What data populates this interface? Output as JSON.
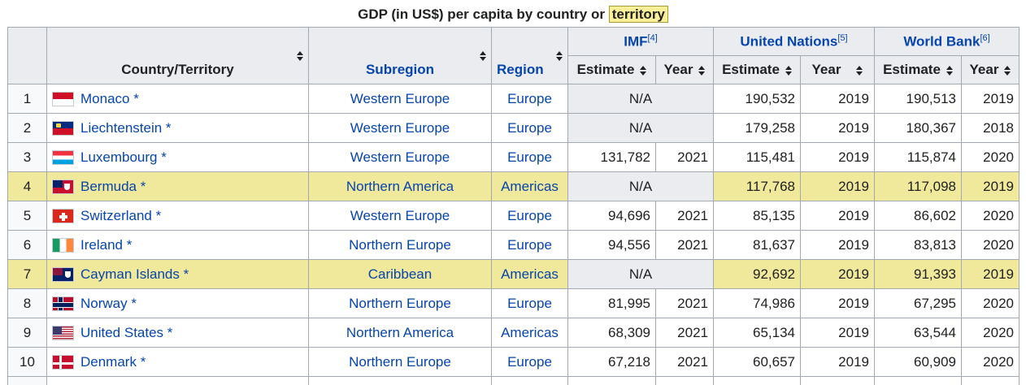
{
  "caption": {
    "text": "GDP (in US$) per capita by country or",
    "highlight": "territory"
  },
  "headers": {
    "country": "Country/Territory",
    "subregion": "Subregion",
    "region": "Region",
    "imf": "IMF",
    "imf_ref": "[4]",
    "un": "United Nations",
    "un_ref": "[5]",
    "wb": "World Bank",
    "wb_ref": "[6]",
    "estimate": "Estimate",
    "year": "Year"
  },
  "rows": [
    {
      "rank": "1",
      "country": "Monaco",
      "star": "*",
      "flag": "f-monaco",
      "subregion": "Western Europe",
      "region": "Europe",
      "imf_est": "N/A",
      "imf_year": "",
      "un_est": "190,532",
      "un_year": "2019",
      "wb_est": "190,513",
      "wb_year": "2019",
      "highlight": false
    },
    {
      "rank": "2",
      "country": "Liechtenstein",
      "star": "*",
      "flag": "f-liech",
      "subregion": "Western Europe",
      "region": "Europe",
      "imf_est": "N/A",
      "imf_year": "",
      "un_est": "179,258",
      "un_year": "2019",
      "wb_est": "180,367",
      "wb_year": "2018",
      "highlight": false
    },
    {
      "rank": "3",
      "country": "Luxembourg",
      "star": "*",
      "flag": "f-lux",
      "subregion": "Western Europe",
      "region": "Europe",
      "imf_est": "131,782",
      "imf_year": "2021",
      "un_est": "115,481",
      "un_year": "2019",
      "wb_est": "115,874",
      "wb_year": "2020",
      "highlight": false
    },
    {
      "rank": "4",
      "country": "Bermuda",
      "star": "*",
      "flag": "f-bermuda",
      "subregion": "Northern America",
      "region": "Americas",
      "imf_est": "N/A",
      "imf_year": "",
      "un_est": "117,768",
      "un_year": "2019",
      "wb_est": "117,098",
      "wb_year": "2019",
      "highlight": true
    },
    {
      "rank": "5",
      "country": "Switzerland",
      "star": "*",
      "flag": "f-swiss",
      "subregion": "Western Europe",
      "region": "Europe",
      "imf_est": "94,696",
      "imf_year": "2021",
      "un_est": "85,135",
      "un_year": "2019",
      "wb_est": "86,602",
      "wb_year": "2020",
      "highlight": false
    },
    {
      "rank": "6",
      "country": "Ireland",
      "star": "*",
      "flag": "f-ireland",
      "subregion": "Northern Europe",
      "region": "Europe",
      "imf_est": "94,556",
      "imf_year": "2021",
      "un_est": "81,637",
      "un_year": "2019",
      "wb_est": "83,813",
      "wb_year": "2020",
      "highlight": false
    },
    {
      "rank": "7",
      "country": "Cayman Islands",
      "star": "*",
      "flag": "f-cayman",
      "subregion": "Caribbean",
      "region": "Americas",
      "imf_est": "N/A",
      "imf_year": "",
      "un_est": "92,692",
      "un_year": "2019",
      "wb_est": "91,393",
      "wb_year": "2019",
      "highlight": true
    },
    {
      "rank": "8",
      "country": "Norway",
      "star": "*",
      "flag": "f-norway",
      "subregion": "Northern Europe",
      "region": "Europe",
      "imf_est": "81,995",
      "imf_year": "2021",
      "un_est": "74,986",
      "un_year": "2019",
      "wb_est": "67,295",
      "wb_year": "2020",
      "highlight": false
    },
    {
      "rank": "9",
      "country": "United States",
      "star": "*",
      "flag": "f-us",
      "subregion": "Northern America",
      "region": "Americas",
      "imf_est": "68,309",
      "imf_year": "2021",
      "un_est": "65,134",
      "un_year": "2019",
      "wb_est": "63,544",
      "wb_year": "2020",
      "highlight": false
    },
    {
      "rank": "10",
      "country": "Denmark",
      "star": "*",
      "flag": "f-denmark",
      "subregion": "Northern Europe",
      "region": "Europe",
      "imf_est": "67,218",
      "imf_year": "2021",
      "un_est": "60,657",
      "un_year": "2019",
      "wb_est": "60,909",
      "wb_year": "2020",
      "highlight": false
    }
  ],
  "colors": {
    "link": "#0645ad",
    "header_bg": "#eaecf0",
    "highlight_row": "#f0e89b",
    "caption_highlight": "#fbf09a"
  },
  "icons": {
    "sort": "sort-updown-icon"
  }
}
